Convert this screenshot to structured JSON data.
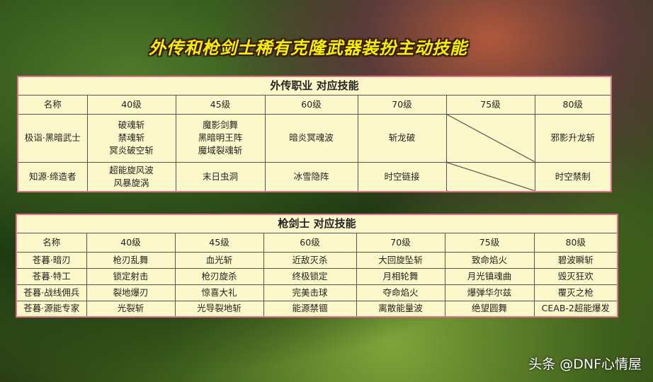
{
  "title": "外传和枪剑士稀有克隆武器装扮主动技能",
  "table1": {
    "caption": "外传职业 对应技能",
    "headers": [
      "名称",
      "40级",
      "45级",
      "60级",
      "70级",
      "75级",
      "80级"
    ],
    "rows": [
      {
        "name": "极诣·黑暗武士",
        "l40": [
          "破魂斩",
          "禁魂斩",
          "冥炎破空斩"
        ],
        "l45": [
          "魔影剑舞",
          "黑暗明王阵",
          "魔域裂魂斩"
        ],
        "l60": "暗炎冥魂波",
        "l70": "斩龙破",
        "l75": "",
        "l80": "邪影升龙斩"
      },
      {
        "name": "知源·缔造者",
        "l40": [
          "超能旋风波",
          "风暴旋涡"
        ],
        "l45": [
          "末日虫洞"
        ],
        "l60": "冰雪隐阵",
        "l70": "时空链接",
        "l75": "",
        "l80": "时空禁制"
      }
    ]
  },
  "table2": {
    "caption": "枪剑士 对应技能",
    "headers": [
      "名称",
      "40级",
      "45级",
      "60级",
      "70级",
      "75级",
      "80级"
    ],
    "rows": [
      [
        "苍暮·暗刃",
        "枪刃乱舞",
        "血光斩",
        "近敌灭杀",
        "大回旋坠斩",
        "致命焰火",
        "碧波瞬斩"
      ],
      [
        "苍暮·特工",
        "锁定射击",
        "枪刃旋杀",
        "终极锁定",
        "月相轮舞",
        "月光镇魂曲",
        "毁灭狂欢"
      ],
      [
        "苍暮·战线佣兵",
        "裂地爆刃",
        "惊喜大礼",
        "完美击球",
        "夺命焰火",
        "爆弹华尔兹",
        "覆灭之枪"
      ],
      [
        "苍暮·源能专家",
        "光裂斩",
        "光导裂地斩",
        "能源禁锢",
        "离散能量波",
        "绝望圆舞",
        "CEAB-2超能爆发"
      ]
    ]
  },
  "watermark": "头条 @DNF心情屋",
  "colors": {
    "title": "#f4f000",
    "table_bg": "#fdf8c9",
    "table_border": "#e0708a"
  }
}
